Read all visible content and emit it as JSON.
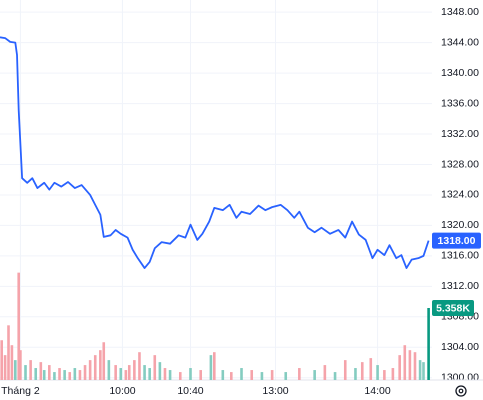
{
  "chart_data": {
    "type": "line",
    "color": "#2962ff",
    "grid": true,
    "x": [
      -12,
      -9,
      -6,
      -3,
      -2,
      -1,
      1,
      4,
      7,
      10,
      14,
      17,
      20,
      24,
      28,
      32,
      36,
      41,
      44,
      47,
      49,
      53,
      56,
      59,
      63,
      66,
      69,
      73,
      76,
      79,
      83,
      88,
      93,
      97,
      100,
      104,
      107,
      111,
      114,
      119,
      123,
      127,
      130,
      135,
      140,
      144,
      148,
      153,
      157,
      161,
      164,
      169,
      173,
      177,
      182,
      187,
      191,
      195,
      199,
      203,
      207,
      210,
      214,
      217,
      221,
      224,
      227,
      230,
      234,
      237,
      240
    ],
    "values": [
      1344.7,
      1344.6,
      1344.1,
      1344.0,
      1342.4,
      1335.1,
      1326.2,
      1325.6,
      1326.2,
      1324.9,
      1325.6,
      1324.7,
      1325.6,
      1325.1,
      1325.7,
      1324.9,
      1325.3,
      1324.0,
      1322.7,
      1321.4,
      1318.5,
      1318.7,
      1319.4,
      1318.9,
      1318.4,
      1316.8,
      1315.7,
      1314.4,
      1315.2,
      1317.0,
      1317.8,
      1317.6,
      1318.7,
      1318.4,
      1320.1,
      1318.1,
      1318.9,
      1320.5,
      1322.3,
      1322.0,
      1322.7,
      1321.0,
      1321.8,
      1321.5,
      1322.6,
      1322.0,
      1322.4,
      1322.7,
      1322.0,
      1321.0,
      1321.8,
      1319.7,
      1319.1,
      1319.7,
      1318.9,
      1319.4,
      1318.4,
      1320.5,
      1318.8,
      1318.1,
      1315.7,
      1316.8,
      1316.1,
      1317.4,
      1315.7,
      1316.1,
      1314.4,
      1315.5,
      1315.7,
      1316.0,
      1318.0
    ],
    "last_label": "1318.00",
    "xlim": [
      -12,
      242
    ],
    "xticks": [
      {
        "value": 0,
        "label": "Tháng 2"
      },
      {
        "value": 60,
        "label": "10:00"
      },
      {
        "value": 100,
        "label": "10:40"
      },
      {
        "value": 150,
        "label": "13:00"
      },
      {
        "value": 210,
        "label": "14:00"
      }
    ],
    "ylim": [
      1299.7,
      1349.6
    ],
    "yticks": [
      {
        "value": 1300,
        "label": "1300.00"
      },
      {
        "value": 1304,
        "label": "1304.00"
      },
      {
        "value": 1308,
        "label": "1308.00"
      },
      {
        "value": 1312,
        "label": "1312.00"
      },
      {
        "value": 1316,
        "label": "1316.00"
      },
      {
        "value": 1320,
        "label": "1320.00"
      },
      {
        "value": 1324,
        "label": "1324.00"
      },
      {
        "value": 1328,
        "label": "1328.00"
      },
      {
        "value": 1332,
        "label": "1332.00"
      },
      {
        "value": 1336,
        "label": "1336.00"
      },
      {
        "value": 1340,
        "label": "1340.00"
      },
      {
        "value": 1344,
        "label": "1344.00"
      },
      {
        "value": 1348,
        "label": "1348.00"
      }
    ],
    "volume": {
      "x": [
        -11,
        -9,
        -7,
        -5,
        -3,
        -1,
        0,
        3,
        6,
        9,
        12,
        14,
        17,
        20,
        23,
        26,
        29,
        32,
        35,
        38,
        41,
        44,
        47,
        49,
        52,
        56,
        59,
        62,
        64,
        67,
        70,
        73,
        76,
        79,
        82,
        85,
        88,
        94,
        100,
        106,
        112,
        114,
        119,
        124,
        130,
        136,
        142,
        148,
        156,
        164,
        173,
        179,
        185,
        191,
        197,
        201,
        206,
        210,
        214,
        219,
        223,
        226,
        229,
        232,
        235,
        237,
        240
      ],
      "values": [
        2960,
        1850,
        4070,
        2590,
        1480,
        7990,
        2220,
        1110,
        1480,
        890,
        1330,
        740,
        1110,
        590,
        890,
        740,
        590,
        890,
        740,
        1110,
        1480,
        1850,
        2220,
        2810,
        1480,
        1110,
        890,
        740,
        1110,
        1480,
        2070,
        1110,
        890,
        1850,
        1330,
        890,
        740,
        590,
        890,
        740,
        1850,
        2070,
        740,
        590,
        890,
        740,
        590,
        740,
        590,
        890,
        740,
        1110,
        590,
        1480,
        890,
        1330,
        1630,
        1110,
        740,
        890,
        1850,
        2590,
        2220,
        2070,
        1480,
        1330,
        5358
      ],
      "colors": [
        "#f5a3aa",
        "#f5a3aa",
        "#f5a3aa",
        "#f5a3aa",
        "#84ccc0",
        "#f5a3aa",
        "#f5a3aa",
        "#84ccc0",
        "#f5a3aa",
        "#84ccc0",
        "#f5a3aa",
        "#84ccc0",
        "#f5a3aa",
        "#84ccc0",
        "#f5a3aa",
        "#84ccc0",
        "#f5a3aa",
        "#84ccc0",
        "#f5a3aa",
        "#f5a3aa",
        "#f5a3aa",
        "#f5a3aa",
        "#f5a3aa",
        "#f5a3aa",
        "#84ccc0",
        "#f5a3aa",
        "#84ccc0",
        "#f5a3aa",
        "#f5a3aa",
        "#f5a3aa",
        "#f5a3aa",
        "#84ccc0",
        "#84ccc0",
        "#f5a3aa",
        "#84ccc0",
        "#f5a3aa",
        "#84ccc0",
        "#f5a3aa",
        "#84ccc0",
        "#f5a3aa",
        "#84ccc0",
        "#f5a3aa",
        "#84ccc0",
        "#f5a3aa",
        "#84ccc0",
        "#f5a3aa",
        "#84ccc0",
        "#f5a3aa",
        "#84ccc0",
        "#f5a3aa",
        "#84ccc0",
        "#f5a3aa",
        "#84ccc0",
        "#f5a3aa",
        "#84ccc0",
        "#f5a3aa",
        "#f5a3aa",
        "#84ccc0",
        "#f5a3aa",
        "#f5a3aa",
        "#f5a3aa",
        "#f5a3aa",
        "#f5a3aa",
        "#f5a3aa",
        "#84ccc0",
        "#84ccc0",
        "#089981"
      ],
      "badge_color": "#089981",
      "last_label": "5.358K",
      "ylim": [
        0,
        28280
      ]
    }
  }
}
